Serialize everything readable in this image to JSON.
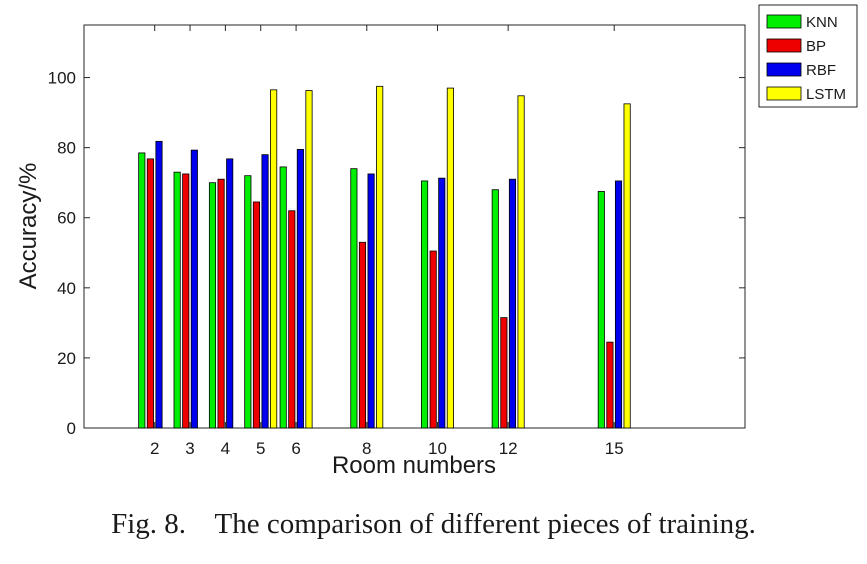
{
  "chart_data": {
    "type": "bar",
    "xlabel": "Room numbers",
    "ylabel": "Accuracy/%",
    "ylim": [
      0,
      115
    ],
    "xlim": [
      0,
      18.7
    ],
    "yticks": [
      0,
      20,
      40,
      60,
      80,
      100
    ],
    "categories": [
      "2",
      "3",
      "4",
      "5",
      "6",
      "8",
      "10",
      "12",
      "15"
    ],
    "x": [
      2,
      3,
      4,
      5,
      6,
      8,
      10,
      12,
      15
    ],
    "legend_position": "top-right-outside",
    "grid": false,
    "series": [
      {
        "name": "KNN",
        "color": "#00ee00",
        "values": [
          78.5,
          73.0,
          70.0,
          72.0,
          74.5,
          74.0,
          70.5,
          68.0,
          67.5
        ]
      },
      {
        "name": "BP",
        "color": "#ee0000",
        "values": [
          76.8,
          72.5,
          71.0,
          64.5,
          62.0,
          53.0,
          50.5,
          31.5,
          24.5
        ]
      },
      {
        "name": "RBF",
        "color": "#0000ee",
        "values": [
          81.8,
          79.3,
          76.8,
          78.0,
          79.5,
          72.5,
          71.3,
          71.0,
          70.5
        ]
      },
      {
        "name": "LSTM",
        "color": "#ffff00",
        "values": [
          null,
          null,
          null,
          96.5,
          96.3,
          97.5,
          97.0,
          94.8,
          92.5
        ]
      }
    ]
  },
  "caption": "Fig. 8.    The comparison of different pieces of training."
}
